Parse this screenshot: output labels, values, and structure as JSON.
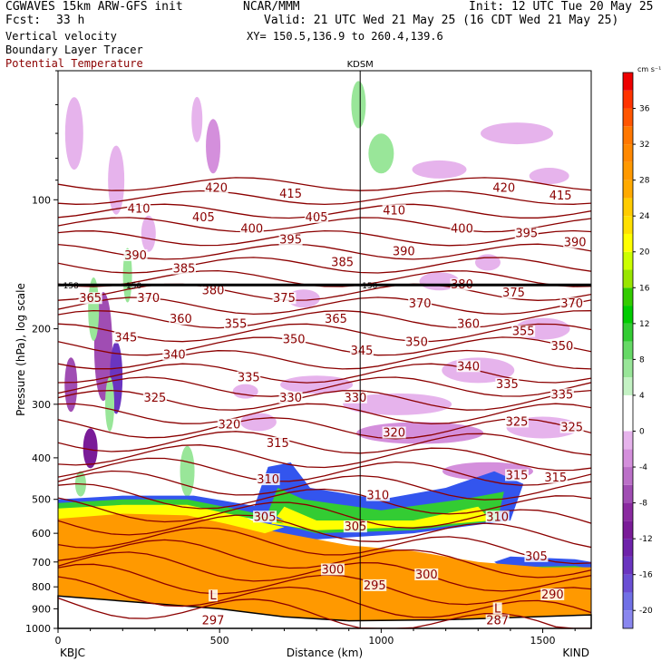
{
  "header": {
    "model": "CGWAVES 15km ARW-GFS init",
    "org": "NCAR/MMM",
    "init": "Init: 12 UTC Tue 20 May 25",
    "fcst_label": "Fcst:",
    "fcst_value": "33 h",
    "valid": "Valid: 21 UTC Wed 21 May 25 (16 CDT Wed 21 May 25)",
    "field1": "Vertical velocity",
    "field2": "Boundary Layer Tracer",
    "field3": "Potential Temperature",
    "xy": "XY= 150.5,136.9 to 260.4,139.6",
    "colors": {
      "field3": "#8b0000"
    }
  },
  "chart_data": {
    "type": "heatmap",
    "title": "",
    "xlabel": "Distance (km)",
    "ylabel": "Pressure (hPa), log scale",
    "y_scale": "log",
    "xlim": [
      0,
      1650
    ],
    "ylim": [
      1000,
      50
    ],
    "x_ticks": [
      0,
      500,
      1000,
      1500
    ],
    "x_tick_labels": [
      "0",
      "500",
      "1000",
      "1500"
    ],
    "y_ticks": [
      100,
      200,
      300,
      400,
      500,
      600,
      700,
      800,
      900,
      1000
    ],
    "y_tick_labels": [
      "100",
      "200",
      "300",
      "400",
      "500",
      "600",
      "700",
      "800",
      "900",
      "1000"
    ],
    "station_left": "KBJC",
    "station_right": "KIND",
    "station_mid": "KDSM",
    "station_mid_x": 935,
    "tropopause_p": 158,
    "tropopause_labels": [
      {
        "x": 10,
        "text": "158"
      },
      {
        "x": 205,
        "text": "150"
      },
      {
        "x": 935,
        "text": "150"
      }
    ],
    "colorbar": {
      "unit": "cm s⁻¹",
      "levels": [
        -22,
        -20,
        -18,
        -16,
        -14,
        -12,
        -10,
        -8,
        -6,
        -4,
        -2,
        0,
        2,
        4,
        6,
        8,
        10,
        12,
        14,
        16,
        18,
        20,
        22,
        24,
        26,
        28,
        30,
        32,
        34,
        36,
        38,
        40
      ],
      "colors": [
        "#8a87ef",
        "#7070e6",
        "#6a4fd4",
        "#6a35c0",
        "#6e22aa",
        "#7a1c98",
        "#8a2aa0",
        "#a04db3",
        "#bb70c8",
        "#d48fdc",
        "#e6b3ec",
        "#ffffff",
        "#ffffff",
        "#c4f2c4",
        "#99e699",
        "#66d966",
        "#33cc33",
        "#00cc00",
        "#33cc00",
        "#99e600",
        "#ccff00",
        "#ffff00",
        "#ffe000",
        "#ffcc00",
        "#ffaa00",
        "#ff9900",
        "#ff8800",
        "#ff7700",
        "#ff5500",
        "#ff3300",
        "#ee0000",
        "#dd0000"
      ],
      "tick_labels": [
        "-20",
        "-16",
        "-12",
        "-8",
        "-4",
        "0",
        "4",
        "8",
        "12",
        "16",
        "20",
        "24",
        "28",
        "32",
        "36"
      ]
    },
    "theta_labels": [
      {
        "x": 490,
        "p": 94,
        "text": "420"
      },
      {
        "x": 1380,
        "p": 94,
        "text": "420"
      },
      {
        "x": 720,
        "p": 97,
        "text": "415"
      },
      {
        "x": 1555,
        "p": 98,
        "text": "415"
      },
      {
        "x": 250,
        "p": 105,
        "text": "410"
      },
      {
        "x": 1040,
        "p": 106,
        "text": "410"
      },
      {
        "x": 450,
        "p": 110,
        "text": "405"
      },
      {
        "x": 800,
        "p": 110,
        "text": "405"
      },
      {
        "x": 600,
        "p": 117,
        "text": "400"
      },
      {
        "x": 1250,
        "p": 117,
        "text": "400"
      },
      {
        "x": 720,
        "p": 124,
        "text": "395"
      },
      {
        "x": 1450,
        "p": 120,
        "text": "395"
      },
      {
        "x": 240,
        "p": 135,
        "text": "390"
      },
      {
        "x": 1070,
        "p": 132,
        "text": "390"
      },
      {
        "x": 1600,
        "p": 126,
        "text": "390"
      },
      {
        "x": 390,
        "p": 145,
        "text": "385"
      },
      {
        "x": 880,
        "p": 140,
        "text": "385"
      },
      {
        "x": 480,
        "p": 163,
        "text": "380"
      },
      {
        "x": 1250,
        "p": 158,
        "text": "380"
      },
      {
        "x": 100,
        "p": 170,
        "text": "365"
      },
      {
        "x": 280,
        "p": 170,
        "text": "370"
      },
      {
        "x": 700,
        "p": 170,
        "text": "375"
      },
      {
        "x": 1120,
        "p": 175,
        "text": "370"
      },
      {
        "x": 1410,
        "p": 165,
        "text": "375"
      },
      {
        "x": 1590,
        "p": 175,
        "text": "370"
      },
      {
        "x": 380,
        "p": 190,
        "text": "360"
      },
      {
        "x": 550,
        "p": 195,
        "text": "355"
      },
      {
        "x": 860,
        "p": 190,
        "text": "365"
      },
      {
        "x": 1270,
        "p": 195,
        "text": "360"
      },
      {
        "x": 1440,
        "p": 203,
        "text": "355"
      },
      {
        "x": 210,
        "p": 210,
        "text": "345"
      },
      {
        "x": 730,
        "p": 212,
        "text": "350"
      },
      {
        "x": 1110,
        "p": 215,
        "text": "350"
      },
      {
        "x": 1560,
        "p": 220,
        "text": "350"
      },
      {
        "x": 360,
        "p": 230,
        "text": "340"
      },
      {
        "x": 940,
        "p": 225,
        "text": "345"
      },
      {
        "x": 1270,
        "p": 245,
        "text": "340"
      },
      {
        "x": 590,
        "p": 260,
        "text": "335"
      },
      {
        "x": 1390,
        "p": 270,
        "text": "335"
      },
      {
        "x": 1560,
        "p": 285,
        "text": "335"
      },
      {
        "x": 300,
        "p": 290,
        "text": "325"
      },
      {
        "x": 720,
        "p": 290,
        "text": "330"
      },
      {
        "x": 920,
        "p": 290,
        "text": "330"
      },
      {
        "x": 1420,
        "p": 330,
        "text": "325"
      },
      {
        "x": 1590,
        "p": 340,
        "text": "325"
      },
      {
        "x": 530,
        "p": 335,
        "text": "320"
      },
      {
        "x": 1040,
        "p": 350,
        "text": "320"
      },
      {
        "x": 680,
        "p": 370,
        "text": "315"
      },
      {
        "x": 1420,
        "p": 440,
        "text": "315"
      },
      {
        "x": 1540,
        "p": 445,
        "text": "315"
      },
      {
        "x": 650,
        "p": 450,
        "text": "310"
      },
      {
        "x": 990,
        "p": 490,
        "text": "310"
      },
      {
        "x": 1360,
        "p": 550,
        "text": "310"
      },
      {
        "x": 640,
        "p": 550,
        "text": "305"
      },
      {
        "x": 920,
        "p": 580,
        "text": "305"
      },
      {
        "x": 1480,
        "p": 680,
        "text": "305"
      },
      {
        "x": 850,
        "p": 730,
        "text": "300"
      },
      {
        "x": 1140,
        "p": 750,
        "text": "300"
      },
      {
        "x": 980,
        "p": 795,
        "text": "295"
      },
      {
        "x": 1530,
        "p": 835,
        "text": "290"
      },
      {
        "x": 480,
        "p": 840,
        "text": "L"
      },
      {
        "x": 1360,
        "p": 900,
        "text": "L"
      },
      {
        "x": 480,
        "p": 960,
        "text": "297"
      },
      {
        "x": 1360,
        "p": 960,
        "text": "287"
      }
    ]
  }
}
